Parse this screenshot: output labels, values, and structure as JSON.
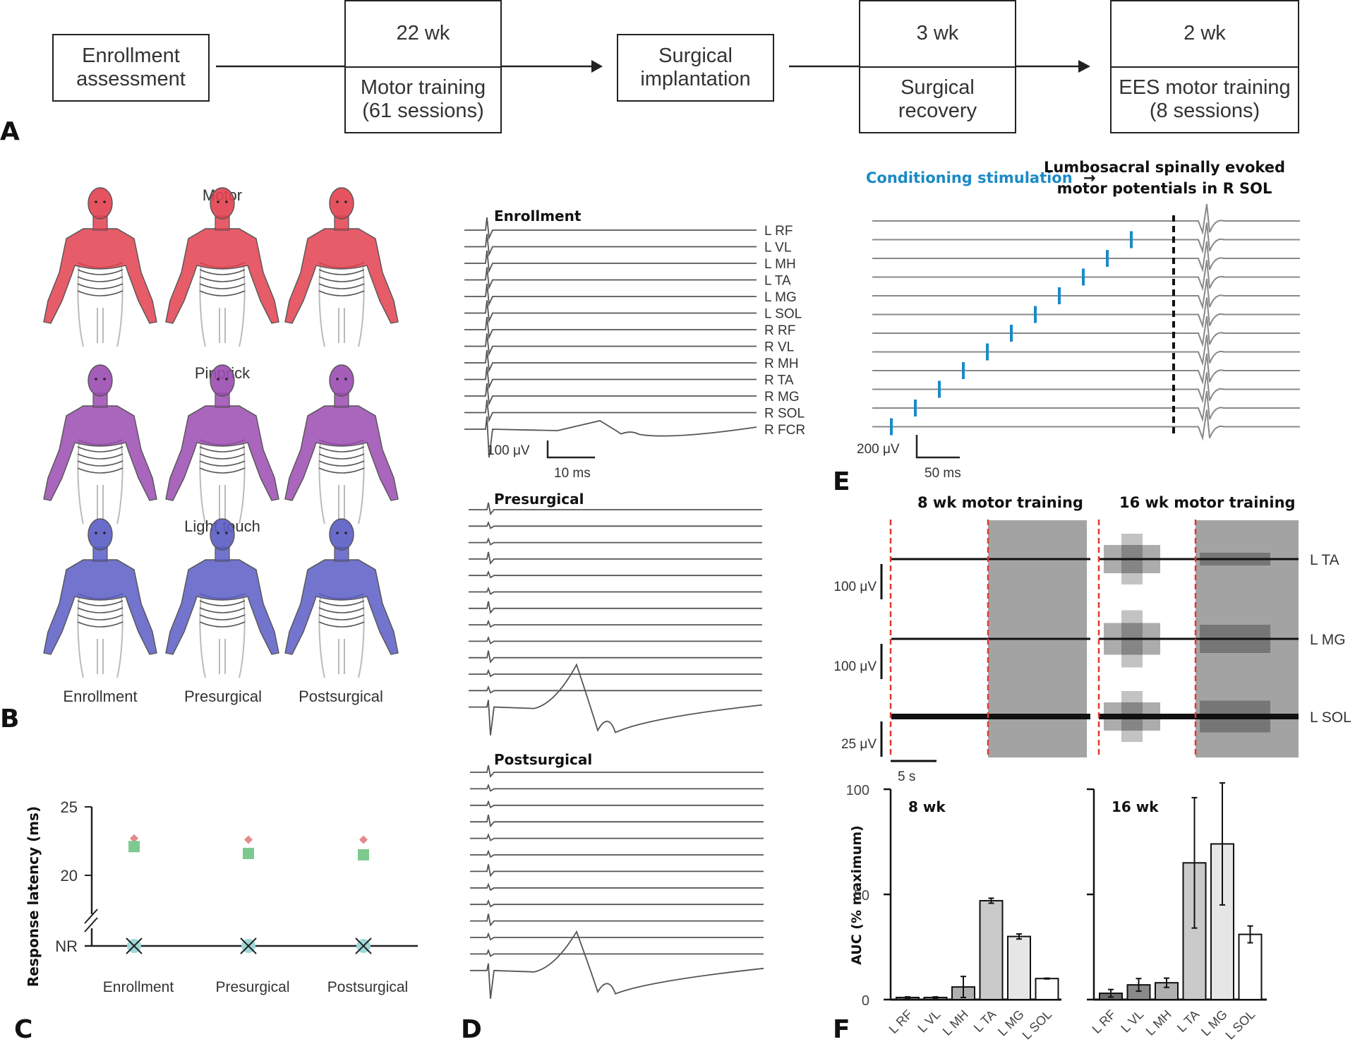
{
  "panel_A": {
    "letter": "A",
    "steps": [
      {
        "lines": [
          "Enrollment",
          "assessment"
        ]
      },
      {
        "duration": "22 wk",
        "lines": [
          "Motor training",
          "(61  sessions)"
        ]
      },
      {
        "lines": [
          "Surgical",
          "implantation"
        ]
      },
      {
        "duration": "3 wk",
        "lines": [
          "Surgical",
          "recovery"
        ]
      },
      {
        "duration": "2 wk",
        "lines": [
          "EES motor training",
          "(8 sessions)"
        ]
      }
    ]
  },
  "panel_B": {
    "letter": "B",
    "rows": [
      {
        "title": "Motor",
        "color": "#e3404f"
      },
      {
        "title": "Pinprick",
        "color": "#9a4bb0"
      },
      {
        "title": "Light touch",
        "color": "#5a5cc4"
      }
    ],
    "columns": [
      "Enrollment",
      "Presurgical",
      "Postsurgical"
    ]
  },
  "panel_C": {
    "letter": "C"
  },
  "panel_D": {
    "letter": "D",
    "sections": [
      "Enrollment",
      "Presurgical",
      "Postsurgical"
    ],
    "channels": [
      "L RF",
      "L VL",
      "L MH",
      "L TA",
      "L MG",
      "L SOL",
      "R RF",
      "R VL",
      "R MH",
      "R TA",
      "R MG",
      "R SOL",
      "R FCR"
    ],
    "scale_v": "100 μV",
    "scale_t": "10 ms"
  },
  "panel_E_top": {
    "letter": "E",
    "conditioning_label": "Conditioning stimulation",
    "arrow": "→",
    "target_label_line1": "Lumbosacral spinally evoked",
    "target_label_line2": "motor potentials in R SOL",
    "trace_count": 12,
    "scale_v": "200 μV",
    "scale_t": "50 ms",
    "accent_color": "#1a8ac7"
  },
  "panel_E_bottom": {
    "titles": [
      "8 wk motor training",
      "16 wk motor training"
    ],
    "channels": [
      "L TA",
      "L MG",
      "L SOL"
    ],
    "scales": [
      "100 μV",
      "100 μV",
      "25 μV"
    ],
    "time_scale": "5 s",
    "marker_color": "#e0392f",
    "shade_color": "#a3a3a3"
  },
  "chart_data": [
    {
      "id": "panel_C",
      "type": "scatter",
      "title": "",
      "xlabel": "",
      "ylabel": "Response latency (ms)",
      "categories": [
        "Enrollment",
        "Presurgical",
        "Postsurgical"
      ],
      "yticks": [
        "NR",
        "20",
        "25"
      ],
      "ylim": [
        17,
        25
      ],
      "axis_break": true,
      "series": [
        {
          "name": "diamond",
          "marker": "diamond",
          "color": "#e58a8a",
          "values": [
            22.7,
            22.6,
            22.6
          ]
        },
        {
          "name": "square",
          "marker": "square",
          "color": "#7ec98f",
          "values": [
            22.1,
            21.6,
            21.5
          ]
        },
        {
          "name": "no-response",
          "marker": "x-circle",
          "color": "#9fd8d8",
          "values": [
            "NR",
            "NR",
            "NR"
          ]
        }
      ]
    },
    {
      "id": "panel_F",
      "letter": "F",
      "type": "bar",
      "ylabel": "AUC (% maximum)",
      "ylim": [
        0,
        100
      ],
      "yticks": [
        0,
        50,
        100
      ],
      "categories": [
        "L RF",
        "L VL",
        "L MH",
        "L TA",
        "L MG",
        "L SOL"
      ],
      "groups": [
        {
          "name": "8 wk",
          "values": [
            1,
            1,
            6,
            47,
            30,
            10
          ],
          "errors": [
            0.3,
            0.3,
            5,
            1.2,
            1.2,
            0.2
          ]
        },
        {
          "name": "16 wk",
          "values": [
            3,
            7,
            8,
            65,
            74,
            31
          ],
          "errors": [
            1.8,
            3,
            2.2,
            31,
            29,
            4
          ]
        }
      ],
      "bar_colors": [
        "#6e6e6e",
        "#8a8a8a",
        "#b0b0b0",
        "#cacaca",
        "#e6e6e6",
        "#ffffff"
      ]
    }
  ]
}
